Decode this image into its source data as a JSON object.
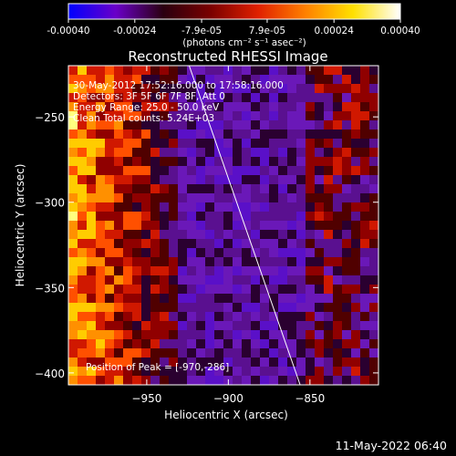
{
  "colorbar": {
    "ticks": [
      "-0.00040",
      "-0.00024",
      "-7.9e-05",
      "7.9e-05",
      "0.00024",
      "0.00040"
    ],
    "tick_values": [
      -0.0004,
      -0.00024,
      -7.9e-05,
      7.9e-05,
      0.00024,
      0.0004
    ],
    "range": [
      -0.0004,
      0.0004
    ],
    "units": "(photons cm⁻² s⁻¹ asec⁻²)",
    "colors": [
      "#0000ff",
      "#6a00c8",
      "#2a0010",
      "#7a0000",
      "#e02000",
      "#ff8000",
      "#ffe000",
      "#ffffff"
    ]
  },
  "chart_data": {
    "type": "heatmap",
    "title": "Reconstructed RHESSI Image",
    "xlabel": "Heliocentric X (arcsec)",
    "ylabel": "Heliocentric Y (arcsec)",
    "xlim": [
      -998,
      -808
    ],
    "ylim": [
      -407,
      -220
    ],
    "xticks": [
      -950,
      -900,
      -850
    ],
    "xtick_labels": [
      "−950",
      "−900",
      "−850"
    ],
    "yticks": [
      -250,
      -300,
      -350,
      -400
    ],
    "ytick_labels": [
      "−250",
      "−300",
      "−350",
      "−400"
    ],
    "limb_line": [
      [
        -924,
        -220
      ],
      [
        -856,
        -407
      ]
    ],
    "peak": [
      -970,
      -286
    ]
  },
  "annotations": {
    "time": "30-May-2012 17:52:16.000 to 17:58:16.000",
    "detectors": "Detectors: 3F 5F 6F 7F 8F, Att 0",
    "energy": "Energy Range: 25.0 - 50.0 keV",
    "clean": "Clean    Total counts: 5.24E+03",
    "peak": "Position of Peak = [-970,-286]"
  },
  "footer": {
    "timestamp": "11-May-2022 06:40"
  }
}
